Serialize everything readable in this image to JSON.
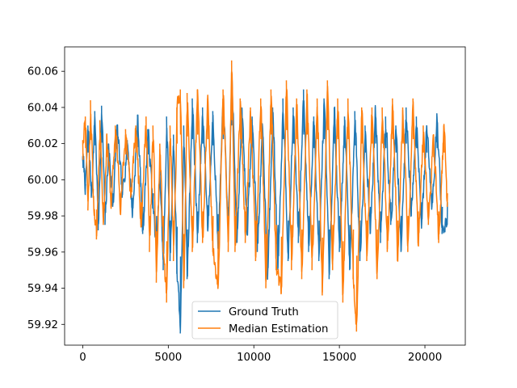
{
  "chart_data": {
    "type": "line",
    "title": "",
    "xlabel": "",
    "ylabel": "",
    "xlim": [
      -1060,
      22360
    ],
    "ylim": [
      59.9085,
      60.0735
    ],
    "x_ticks": [
      0,
      5000,
      10000,
      15000,
      20000
    ],
    "x_tick_labels": [
      "0",
      "5000",
      "10000",
      "15000",
      "20000"
    ],
    "y_ticks": [
      59.92,
      59.94,
      59.96,
      59.98,
      60.0,
      60.02,
      60.04,
      60.06
    ],
    "y_tick_labels": [
      "59.92",
      "59.94",
      "59.96",
      "59.98",
      "60.00",
      "60.02",
      "60.04",
      "60.06"
    ],
    "grid": false,
    "legend_position": "lower center",
    "n_points": 21300,
    "series": [
      {
        "name": "Ground Truth",
        "color": "#1f77b4",
        "x": [
          0,
          150,
          300,
          500,
          700,
          900,
          1100,
          1300,
          1500,
          1750,
          2000,
          2300,
          2600,
          2900,
          3200,
          3500,
          3800,
          4100,
          4300,
          4500,
          4700,
          4900,
          5100,
          5300,
          5500,
          5700,
          5900,
          6100,
          6400,
          6700,
          7000,
          7300,
          7600,
          7900,
          8200,
          8500,
          8700,
          9000,
          9300,
          9600,
          9900,
          10200,
          10500,
          10800,
          11100,
          11400,
          11700,
          12000,
          12300,
          12600,
          12900,
          13200,
          13500,
          13800,
          14100,
          14400,
          14700,
          15000,
          15300,
          15600,
          15900,
          16200,
          16500,
          16800,
          17100,
          17400,
          17700,
          18000,
          18300,
          18600,
          18900,
          19200,
          19500,
          19800,
          20100,
          20400,
          20700,
          21000,
          21300
        ],
        "values": [
          60.013,
          59.995,
          60.03,
          59.99,
          60.038,
          59.972,
          60.041,
          59.975,
          60.02,
          59.985,
          60.03,
          59.99,
          60.022,
          59.98,
          60.036,
          59.97,
          60.028,
          59.985,
          59.96,
          60.005,
          59.95,
          60.035,
          59.955,
          60.025,
          59.948,
          59.915,
          60.03,
          59.945,
          60.045,
          59.965,
          60.04,
          59.972,
          60.038,
          59.962,
          60.045,
          59.97,
          60.06,
          59.965,
          60.04,
          59.97,
          60.035,
          59.96,
          60.03,
          59.945,
          60.04,
          59.95,
          60.045,
          59.955,
          60.04,
          59.965,
          60.05,
          59.96,
          60.035,
          59.955,
          60.045,
          59.945,
          60.04,
          59.96,
          60.035,
          59.95,
          60.038,
          59.955,
          60.03,
          59.97,
          60.04,
          59.965,
          60.035,
          59.975,
          60.03,
          59.96,
          60.04,
          59.98,
          60.035,
          59.975,
          60.03,
          59.985,
          60.035,
          59.97,
          59.975
        ]
      },
      {
        "name": "Median Estimation",
        "color": "#ff7f0e",
        "x": [
          0,
          150,
          300,
          450,
          600,
          800,
          1000,
          1200,
          1400,
          1650,
          1900,
          2200,
          2500,
          2800,
          3100,
          3400,
          3700,
          3900,
          4100,
          4300,
          4500,
          4700,
          4900,
          5100,
          5300,
          5500,
          5700,
          5900,
          6100,
          6400,
          6700,
          7000,
          7300,
          7600,
          7900,
          8200,
          8500,
          8700,
          8900,
          9200,
          9500,
          9800,
          10100,
          10400,
          10700,
          11000,
          11300,
          11600,
          11900,
          12200,
          12500,
          12800,
          13100,
          13400,
          13700,
          14000,
          14300,
          14600,
          14900,
          15200,
          15500,
          15800,
          16000,
          16300,
          16600,
          16900,
          17200,
          17500,
          17800,
          18100,
          18400,
          18700,
          19000,
          19300,
          19600,
          19900,
          20200,
          20500,
          20800,
          21100,
          21300
        ],
        "values": [
          60.022,
          60.035,
          59.983,
          60.044,
          59.99,
          59.967,
          60.033,
          59.975,
          60.025,
          59.985,
          60.03,
          59.985,
          60.028,
          59.99,
          60.03,
          59.975,
          60.035,
          59.96,
          60.03,
          59.943,
          60.02,
          59.96,
          59.932,
          60.03,
          59.955,
          60.04,
          60.05,
          59.94,
          60.048,
          59.96,
          60.05,
          59.965,
          60.045,
          59.96,
          59.943,
          60.05,
          59.96,
          60.066,
          59.96,
          60.045,
          59.965,
          60.04,
          59.955,
          60.045,
          59.94,
          60.05,
          59.95,
          59.937,
          60.055,
          59.95,
          60.045,
          59.945,
          60.05,
          59.95,
          60.045,
          59.936,
          60.055,
          59.95,
          60.045,
          59.932,
          60.045,
          59.945,
          59.916,
          60.04,
          59.955,
          60.04,
          59.945,
          60.04,
          59.96,
          60.045,
          59.955,
          60.04,
          59.96,
          60.045,
          59.965,
          60.03,
          59.975,
          60.025,
          59.965,
          60.03,
          59.985
        ]
      }
    ]
  }
}
